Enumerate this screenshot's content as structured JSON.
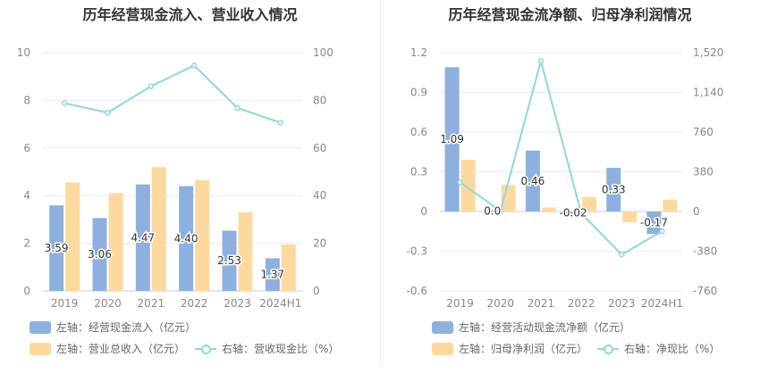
{
  "colors": {
    "bar_blue": "#8EB0DE",
    "bar_orange": "#FDD9A0",
    "line": "#8DD8DA",
    "grid": "#E6E9F0",
    "axis_text": "#888888"
  },
  "left": {
    "title": "历年经营现金流入、营业收入情况",
    "legend": [
      {
        "label": "左轴：经营现金流入（亿元）",
        "icon": "bar-swatch"
      },
      {
        "label": "左轴：营业总收入（亿元）",
        "icon": "bar-swatch"
      },
      {
        "label": "右轴：营收现金比（%）",
        "icon": "line-swatch"
      }
    ],
    "y_left_ticks": [
      "0",
      "2",
      "4",
      "6",
      "8",
      "10"
    ],
    "y_right_ticks": [
      "0",
      "20",
      "40",
      "60",
      "80",
      "100"
    ]
  },
  "right": {
    "title": "历年经营现金流净额、归母净利润情况",
    "legend": [
      {
        "label": "左轴：经营活动现金流净额（亿元）",
        "icon": "bar-swatch"
      },
      {
        "label": "左轴：归母净利润（亿元）",
        "icon": "bar-swatch"
      },
      {
        "label": "右轴：净现比（%）",
        "icon": "line-swatch"
      }
    ],
    "y_left_ticks": [
      "-0.6",
      "-0.3",
      "0",
      "0.3",
      "0.6",
      "0.9",
      "1.2"
    ],
    "y_right_ticks": [
      "-760",
      "-380",
      "0",
      "380",
      "760",
      "1,140",
      "1,520"
    ]
  },
  "chart_data": [
    {
      "type": "bar",
      "title": "历年经营现金流入、营业收入情况",
      "categories": [
        "2019",
        "2020",
        "2021",
        "2022",
        "2023",
        "2024H1"
      ],
      "series": [
        {
          "name": "经营现金流入（亿元）",
          "axis": "left",
          "type": "bar",
          "values": [
            3.59,
            3.06,
            4.47,
            4.4,
            2.53,
            1.37
          ],
          "labels": [
            "3.59",
            "3.06",
            "4.47",
            "4.40",
            "2.53",
            "1.37"
          ]
        },
        {
          "name": "营业总收入（亿元）",
          "axis": "left",
          "type": "bar",
          "values": [
            4.55,
            4.1,
            5.2,
            4.65,
            3.3,
            1.95
          ]
        },
        {
          "name": "营收现金比（%）",
          "axis": "right",
          "type": "line",
          "values": [
            78.8,
            74.8,
            85.9,
            94.6,
            76.8,
            70.6
          ]
        }
      ],
      "ylim_left": [
        0,
        10
      ],
      "ylim_right": [
        0,
        100
      ],
      "grid": true,
      "legend_position": "bottom"
    },
    {
      "type": "bar",
      "title": "历年经营现金流净额、归母净利润情况",
      "categories": [
        "2019",
        "2020",
        "2021",
        "2022",
        "2023",
        "2024H1"
      ],
      "series": [
        {
          "name": "经营活动现金流净额（亿元）",
          "axis": "left",
          "type": "bar",
          "values": [
            1.09,
            0.01,
            0.46,
            -0.02,
            0.33,
            -0.17
          ],
          "labels": [
            "1.09",
            "0.0",
            "0.46",
            "-0.02",
            "0.33",
            "-0.17"
          ]
        },
        {
          "name": "归母净利润（亿元）",
          "axis": "left",
          "type": "bar",
          "values": [
            0.39,
            0.2,
            0.03,
            0.11,
            -0.08,
            0.09
          ]
        },
        {
          "name": "净现比（%）",
          "axis": "right",
          "type": "line",
          "values": [
            279,
            5,
            1440,
            -18,
            -412,
            -189
          ]
        }
      ],
      "ylim_left": [
        -0.6,
        1.2
      ],
      "ylim_right": [
        -760,
        1520
      ],
      "grid": true,
      "legend_position": "bottom"
    }
  ]
}
